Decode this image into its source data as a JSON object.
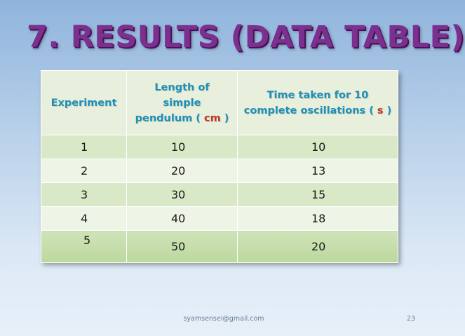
{
  "slide": {
    "title": "7. RESULTS (DATA TABLE)",
    "footer_email": "syamsensei@gmail.com",
    "page_number": "23"
  },
  "table": {
    "headers": {
      "experiment": "Experiment",
      "length_line1": "Length of",
      "length_line2": "simple",
      "length_line3": "pendulum ( ",
      "length_unit": "cm",
      "length_close": " )",
      "time_line1": "Time taken for 10",
      "time_line2": "complete oscillations ( ",
      "time_unit": "s",
      "time_close": " )"
    },
    "rows": [
      {
        "experiment": "1",
        "length": "10",
        "time": "10"
      },
      {
        "experiment": "2",
        "length": "20",
        "time": "13"
      },
      {
        "experiment": "3",
        "length": "30",
        "time": "15"
      },
      {
        "experiment": "4",
        "length": "40",
        "time": "18"
      },
      {
        "experiment": "5",
        "length": "50",
        "time": "20"
      }
    ]
  },
  "colors": {
    "title": "#7b2f8f",
    "header_text": "#1e90b8",
    "unit_text": "#c0392b"
  }
}
